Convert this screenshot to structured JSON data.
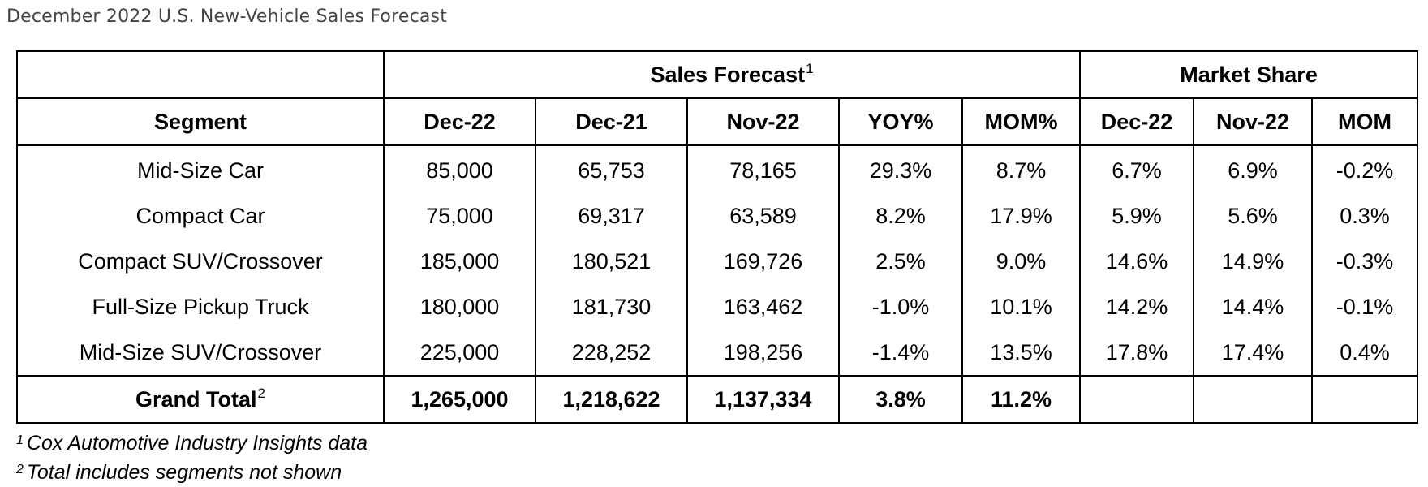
{
  "page_title": "December 2022 U.S. New-Vehicle Sales Forecast",
  "chart_data": {
    "type": "table",
    "group_headers": {
      "sales_forecast": "Sales Forecast",
      "sales_forecast_fn": "1",
      "market_share": "Market Share"
    },
    "columns": [
      "Segment",
      "Dec-22",
      "Dec-21",
      "Nov-22",
      "YOY%",
      "MOM%",
      "Dec-22",
      "Nov-22",
      "MOM"
    ],
    "rows": [
      [
        "Mid-Size Car",
        "85,000",
        "65,753",
        "78,165",
        "29.3%",
        "8.7%",
        "6.7%",
        "6.9%",
        "-0.2%"
      ],
      [
        "Compact Car",
        "75,000",
        "69,317",
        "63,589",
        "8.2%",
        "17.9%",
        "5.9%",
        "5.6%",
        "0.3%"
      ],
      [
        "Compact SUV/Crossover",
        "185,000",
        "180,521",
        "169,726",
        "2.5%",
        "9.0%",
        "14.6%",
        "14.9%",
        "-0.3%"
      ],
      [
        "Full-Size Pickup Truck",
        "180,000",
        "181,730",
        "163,462",
        "-1.0%",
        "10.1%",
        "14.2%",
        "14.4%",
        "-0.1%"
      ],
      [
        "Mid-Size SUV/Crossover",
        "225,000",
        "228,252",
        "198,256",
        "-1.4%",
        "13.5%",
        "17.8%",
        "17.4%",
        "0.4%"
      ]
    ],
    "total": {
      "label": "Grand Total",
      "label_fn": "2",
      "values": [
        "1,265,000",
        "1,218,622",
        "1,137,334",
        "3.8%",
        "11.2%",
        "",
        "",
        ""
      ]
    }
  },
  "footnotes": [
    {
      "mark": "1",
      "text": "Cox Automotive Industry Insights data"
    },
    {
      "mark": "2",
      "text": "Total includes segments not shown"
    }
  ]
}
